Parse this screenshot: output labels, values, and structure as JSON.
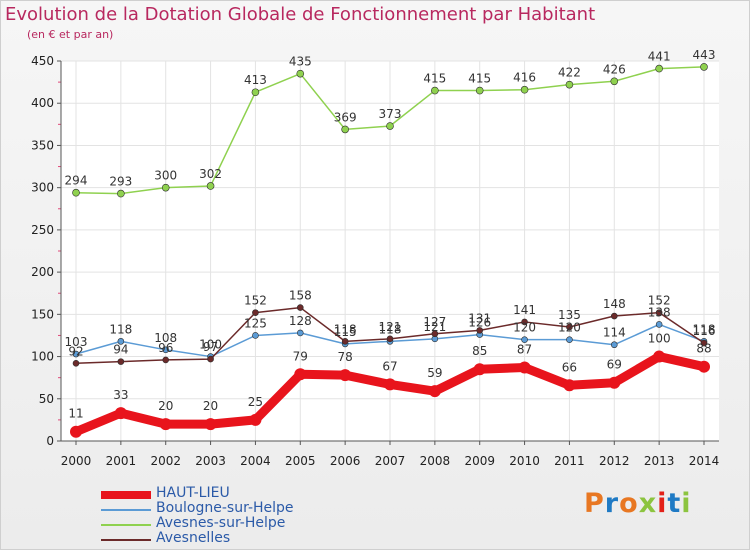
{
  "header": {
    "title": "Evolution de la Dotation Globale de Fonctionnement par Habitant",
    "subtitle": "(en € et par an)"
  },
  "logo": {
    "text": "Proxiti",
    "colors": [
      "#e87722",
      "#1f7ac4",
      "#e87722",
      "#8cc43f",
      "#e32119",
      "#1f7ac4",
      "#8cc43f"
    ]
  },
  "chart_data": {
    "type": "line",
    "title": "Evolution de la Dotation Globale de Fonctionnement par Habitant",
    "subtitle": "(en € et par an)",
    "x": [
      "2000",
      "2001",
      "2002",
      "2003",
      "2004",
      "2005",
      "2006",
      "2007",
      "2008",
      "2009",
      "2010",
      "2011",
      "2012",
      "2013",
      "2014"
    ],
    "ylim": [
      0,
      450
    ],
    "yticks": [
      "0",
      "50",
      "100",
      "150",
      "200",
      "250",
      "300",
      "350",
      "400",
      "450"
    ],
    "grid": true,
    "legend_position": "bottom-left",
    "series": [
      {
        "name": "HAUT-LIEU",
        "color": "#e8141c",
        "values": [
          11,
          33,
          20,
          20,
          25,
          79,
          78,
          67,
          59,
          85,
          87,
          66,
          69,
          100,
          88
        ],
        "labels": [
          "11",
          "33",
          "20",
          "20",
          "25",
          "79",
          "78",
          "67",
          "59",
          "85",
          "87",
          "66",
          "69",
          "100",
          "88"
        ]
      },
      {
        "name": "Boulogne-sur-Helpe",
        "color": "#5b9bd5",
        "values": [
          103,
          118,
          108,
          100,
          125,
          128,
          115,
          118,
          121,
          126,
          120,
          120,
          114,
          138,
          118
        ],
        "labels": [
          "103",
          "118",
          "108",
          "100",
          "125",
          "128",
          "115",
          "118",
          "121",
          "126",
          "120",
          "120",
          "114",
          "138",
          "118"
        ]
      },
      {
        "name": "Avesnes-sur-Helpe",
        "color": "#8fd14f",
        "values": [
          294,
          293,
          300,
          302,
          413,
          435,
          369,
          373,
          415,
          415,
          416,
          422,
          426,
          441,
          443
        ],
        "labels": [
          "294",
          "293",
          "300",
          "302",
          "413",
          "435",
          "369",
          "373",
          "415",
          "415",
          "416",
          "422",
          "426",
          "441",
          "443"
        ]
      },
      {
        "name": "Avesnelles",
        "color": "#6b2a2a",
        "values": [
          92,
          94,
          96,
          97,
          152,
          158,
          118,
          121,
          127,
          131,
          141,
          135,
          148,
          152,
          116
        ],
        "labels": [
          "92",
          "94",
          "96",
          "97",
          "152",
          "158",
          "118",
          "121",
          "127",
          "131",
          "141",
          "135",
          "148",
          "152",
          "116"
        ]
      }
    ]
  }
}
